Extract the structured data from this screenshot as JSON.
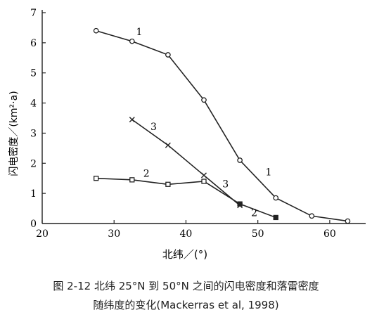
{
  "chart_data": {
    "type": "line",
    "xlabel": "北纬／(°)",
    "ylabel": "闪电密度／(km²·a)",
    "xlim": [
      20,
      65
    ],
    "ylim": [
      0,
      7
    ],
    "xticks": [
      20,
      30,
      40,
      50,
      60
    ],
    "yticks": [
      0,
      1,
      2,
      3,
      4,
      5,
      6,
      7
    ],
    "grid": false,
    "series": [
      {
        "name": "1",
        "marker": "circle",
        "x": [
          27.5,
          32.5,
          37.5,
          42.5,
          47.5,
          52.5,
          57.5,
          62.5
        ],
        "y": [
          6.4,
          6.05,
          5.6,
          4.1,
          2.1,
          0.85,
          0.25,
          0.08
        ]
      },
      {
        "name": "3",
        "marker": "x",
        "x": [
          32.5,
          37.5,
          42.5,
          47.5
        ],
        "y": [
          3.45,
          2.6,
          1.6,
          0.6
        ]
      },
      {
        "name": "2",
        "marker": "square",
        "x": [
          27.5,
          32.5,
          37.5,
          42.5,
          47.5,
          52.5
        ],
        "y": [
          1.5,
          1.45,
          1.3,
          1.4,
          0.65,
          0.2
        ]
      }
    ],
    "annotations": [
      {
        "text": "1",
        "x": 33.5,
        "y": 6.25
      },
      {
        "text": "3",
        "x": 35.5,
        "y": 3.1
      },
      {
        "text": "2",
        "x": 34.5,
        "y": 1.55
      },
      {
        "text": "3",
        "x": 45.5,
        "y": 1.2
      },
      {
        "text": "1",
        "x": 51.5,
        "y": 1.6
      },
      {
        "text": "2",
        "x": 49.5,
        "y": 0.25
      }
    ]
  },
  "caption": {
    "line1": "图 2-12   北纬 25°N 到 50°N 之间的闪电密度和落雷密度",
    "line2": "随纬度的变化(Mackerras et al, 1998)"
  }
}
